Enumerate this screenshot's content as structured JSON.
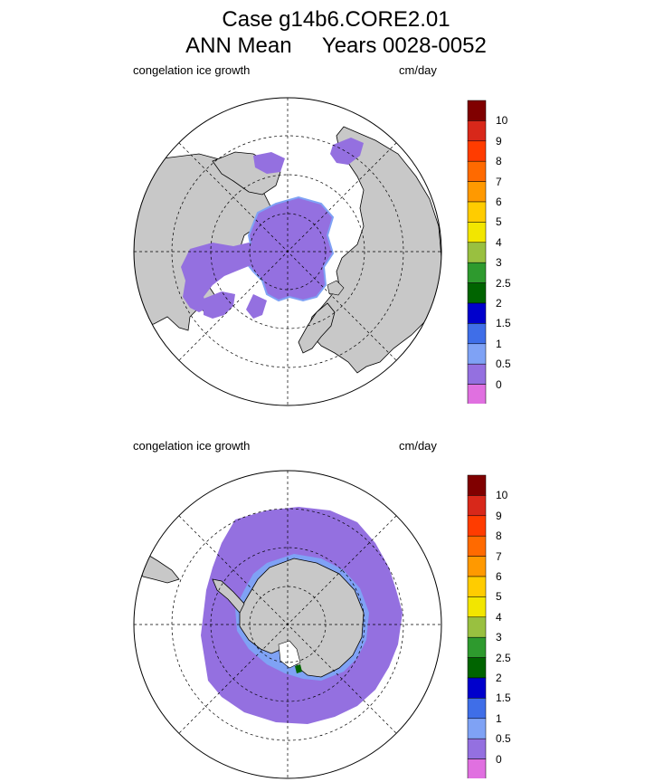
{
  "title": {
    "line1": "Case g14b6.CORE2.01",
    "line2_left": "ANN Mean",
    "line2_right": "Years 0028-0052"
  },
  "chart_data": [
    {
      "type": "polar-contour-map",
      "region": "Northern Hemisphere",
      "field": "congelation ice growth",
      "units": "cm/day",
      "dominant_bin": "0-0.5",
      "colorbar": {
        "levels": [
          "10",
          "9",
          "8",
          "7",
          "6",
          "5",
          "4",
          "3",
          "2.5",
          "2",
          "1.5",
          "1",
          "0.5",
          "0"
        ],
        "colors": [
          "#800000",
          "#d8281a",
          "#ff3c00",
          "#ff6a00",
          "#ff9900",
          "#ffcc00",
          "#f2e600",
          "#99c040",
          "#2e9a2e",
          "#006400",
          "#0000cc",
          "#3f6ee8",
          "#7fa2f5",
          "#9470e0",
          "#e070e0"
        ]
      }
    },
    {
      "type": "polar-contour-map",
      "region": "Southern Hemisphere",
      "field": "congelation ice growth",
      "units": "cm/day",
      "dominant_bin": "0-0.5",
      "colorbar": {
        "levels": [
          "10",
          "9",
          "8",
          "7",
          "6",
          "5",
          "4",
          "3",
          "2.5",
          "2",
          "1.5",
          "1",
          "0.5",
          "0"
        ],
        "colors": [
          "#800000",
          "#d8281a",
          "#ff3c00",
          "#ff6a00",
          "#ff9900",
          "#ffcc00",
          "#f2e600",
          "#99c040",
          "#2e9a2e",
          "#006400",
          "#0000cc",
          "#3f6ee8",
          "#7fa2f5",
          "#9470e0",
          "#e070e0"
        ]
      }
    }
  ]
}
